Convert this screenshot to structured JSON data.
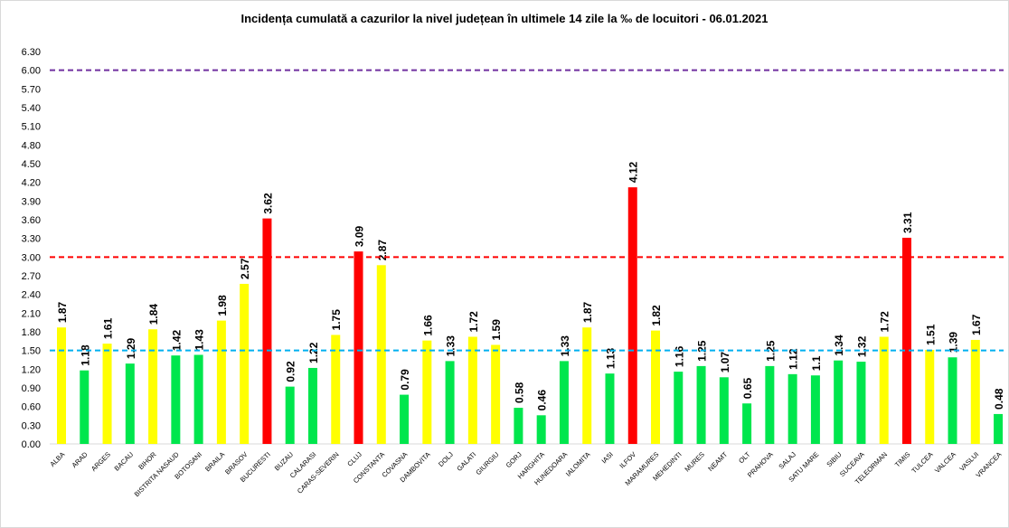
{
  "chart_data": {
    "type": "bar",
    "title": "Incidența cumulată a cazurilor la nivel județean în ultimele 14 zile la ‰ de locuitori - 06.01.2021",
    "xlabel": "",
    "ylabel": "",
    "ylim": [
      0,
      6.3
    ],
    "yticks": [
      "0.00",
      "0.30",
      "0.60",
      "0.90",
      "1.20",
      "1.50",
      "1.80",
      "2.10",
      "2.40",
      "2.70",
      "3.00",
      "3.30",
      "3.60",
      "3.90",
      "4.20",
      "4.50",
      "4.80",
      "5.10",
      "5.40",
      "5.70",
      "6.00",
      "6.30"
    ],
    "grid": false,
    "categories": [
      "ALBA",
      "ARAD",
      "ARGES",
      "BACAU",
      "BIHOR",
      "BISTRITA NASAUD",
      "BOTOSANI",
      "BRAILA",
      "BRASOV",
      "BUCURESTI",
      "BUZAU",
      "CALARASI",
      "CARAS-SEVERIN",
      "CLUJ",
      "CONSTANTA",
      "COVASNA",
      "DAMBOVITA",
      "DOLJ",
      "GALATI",
      "GIURGIU",
      "GORJ",
      "HARGHITA",
      "HUNEDOARA",
      "IALOMITA",
      "IASI",
      "ILFOV",
      "MARAMURES",
      "MEHEDINTI",
      "MURES",
      "NEAMT",
      "OLT",
      "PRAHOVA",
      "SALAJ",
      "SATU MARE",
      "SIBIU",
      "SUCEAVA",
      "TELEORMAN",
      "TIMIS",
      "TULCEA",
      "VALCEA",
      "VASLUI",
      "VRANCEA"
    ],
    "values": [
      1.87,
      1.18,
      1.61,
      1.29,
      1.84,
      1.42,
      1.43,
      1.98,
      2.57,
      3.62,
      0.92,
      1.22,
      1.75,
      3.09,
      2.87,
      0.79,
      1.66,
      1.33,
      1.72,
      1.59,
      0.58,
      0.46,
      1.33,
      1.87,
      1.13,
      4.12,
      1.82,
      1.16,
      1.25,
      1.07,
      0.65,
      1.25,
      1.12,
      1.1,
      1.34,
      1.32,
      1.72,
      3.31,
      1.51,
      1.39,
      1.67,
      0.48
    ],
    "value_labels": [
      "1.87",
      "1.18",
      "1.61",
      "1.29",
      "1.84",
      "1.42",
      "1.43",
      "1.98",
      "2.57",
      "3.62",
      "0.92",
      "1.22",
      "1.75",
      "3.09",
      "2.87",
      "0.79",
      "1.66",
      "1.33",
      "1.72",
      "1.59",
      "0.58",
      "0.46",
      "1.33",
      "1.87",
      "1.13",
      "4.12",
      "1.82",
      "1.16",
      "1.25",
      "1.07",
      "0.65",
      "1.25",
      "1.12",
      "1.1",
      "1.34",
      "1.32",
      "1.72",
      "3.31",
      "1.51",
      "1.39",
      "1.67",
      "0.48"
    ],
    "colors": {
      "low": "#00e64d",
      "medium": "#ffff00",
      "high": "#ff0000"
    },
    "color_thresholds": [
      1.5,
      3.0
    ],
    "reference_lines": [
      {
        "value": 1.5,
        "color": "#00b0f0",
        "style": "dashed"
      },
      {
        "value": 3.0,
        "color": "#ff0000",
        "style": "dashed"
      },
      {
        "value": 6.0,
        "color": "#7030a0",
        "style": "dashed"
      }
    ]
  }
}
